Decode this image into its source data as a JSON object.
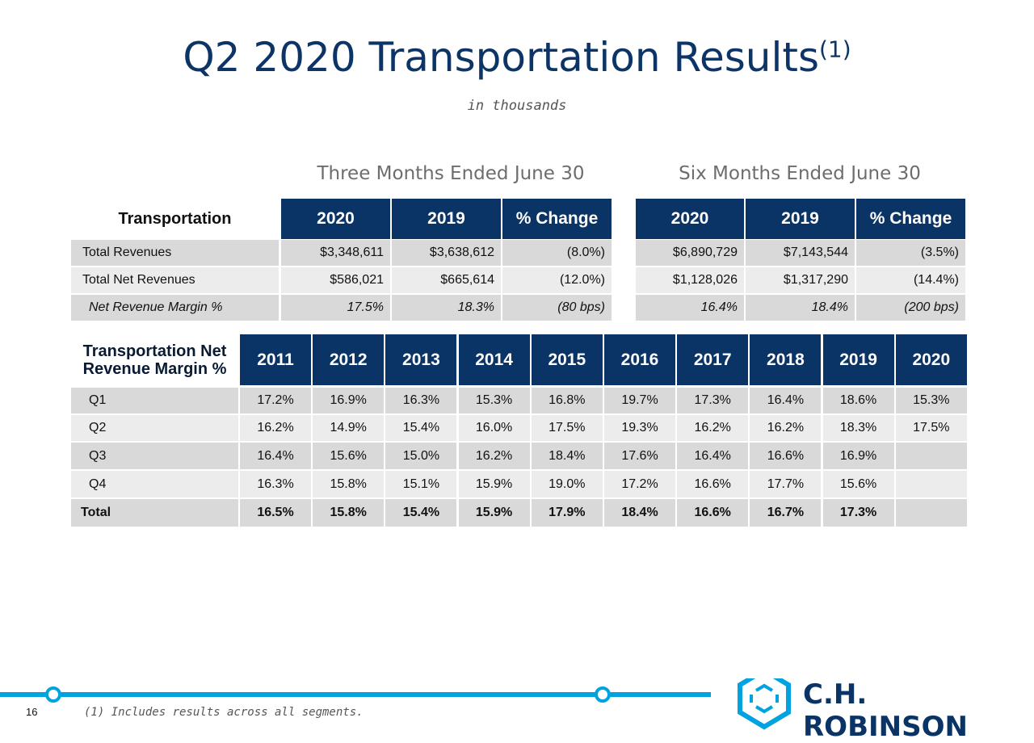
{
  "header": {
    "title": "Q2 2020 Transportation Results",
    "title_note": "(1)",
    "subtitle": "in thousands"
  },
  "summary_table": {
    "group_headers": [
      "Three Months Ended June 30",
      "Six Months Ended June 30"
    ],
    "columns": [
      "Transportation",
      "2020",
      "2019",
      "% Change",
      "2020",
      "2019",
      "% Change"
    ],
    "rows": [
      [
        "Total Revenues",
        "$3,348,611",
        "$3,638,612",
        "(8.0%)",
        "$6,890,729",
        "$7,143,544",
        "(3.5%)"
      ],
      [
        "Total Net Revenues",
        "$586,021",
        "$665,614",
        "(12.0%)",
        "$1,128,026",
        "$1,317,290",
        "(14.4%)"
      ],
      [
        "Net Revenue Margin %",
        "17.5%",
        "18.3%",
        "(80 bps)",
        "16.4%",
        "18.4%",
        "(200 bps)"
      ]
    ]
  },
  "margin_table": {
    "columns": [
      "Transportation Net Revenue Margin %",
      "2011",
      "2012",
      "2013",
      "2014",
      "2015",
      "2016",
      "2017",
      "2018",
      "2019",
      "2020"
    ],
    "rows": [
      [
        "Q1",
        "17.2%",
        "16.9%",
        "16.3%",
        "15.3%",
        "16.8%",
        "19.7%",
        "17.3%",
        "16.4%",
        "18.6%",
        "15.3%"
      ],
      [
        "Q2",
        "16.2%",
        "14.9%",
        "15.4%",
        "16.0%",
        "17.5%",
        "19.3%",
        "16.2%",
        "16.2%",
        "18.3%",
        "17.5%"
      ],
      [
        "Q3",
        "16.4%",
        "15.6%",
        "15.0%",
        "16.2%",
        "18.4%",
        "17.6%",
        "16.4%",
        "16.6%",
        "16.9%"
      ],
      [
        "Q4",
        "16.3%",
        "15.8%",
        "15.1%",
        "15.9%",
        "19.0%",
        "17.2%",
        "16.6%",
        "17.7%",
        "15.6%"
      ],
      [
        "Total",
        "16.5%",
        "15.8%",
        "15.4%",
        "15.9%",
        "17.9%",
        "18.4%",
        "16.6%",
        "16.7%",
        "17.3%"
      ]
    ]
  },
  "footer": {
    "page_number": "16",
    "footnote": "(1) Includes results across all segments.",
    "logo": "C.H. ROBINSON"
  }
}
